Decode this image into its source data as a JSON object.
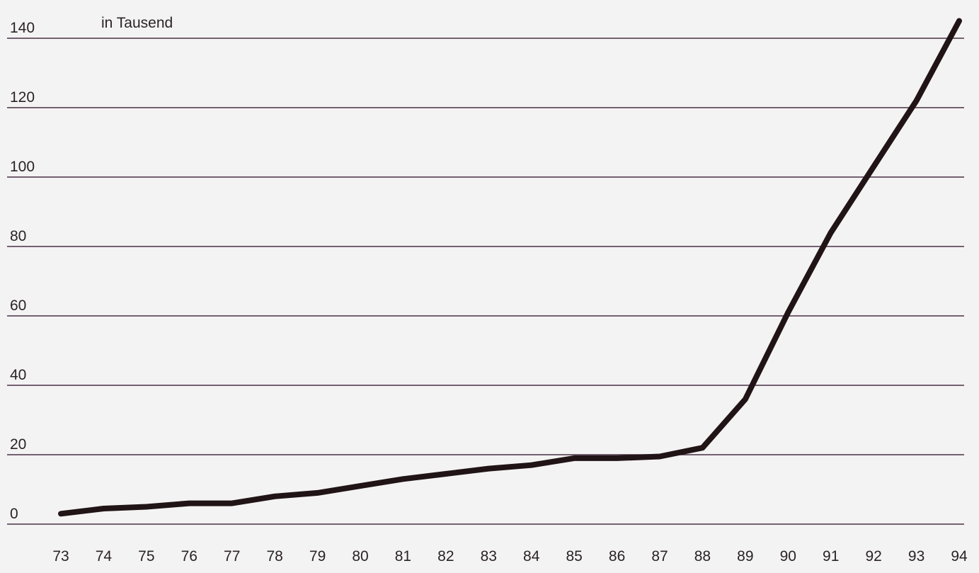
{
  "chart_data": {
    "type": "line",
    "unit_label": "in Tausend",
    "xlabel": "",
    "ylabel": "",
    "x": [
      "73",
      "74",
      "75",
      "76",
      "77",
      "78",
      "79",
      "80",
      "81",
      "82",
      "83",
      "84",
      "85",
      "86",
      "87",
      "88",
      "89",
      "90",
      "91",
      "92",
      "93",
      "94"
    ],
    "series": [
      {
        "values": [
          3,
          4.5,
          5,
          6,
          6,
          8,
          9,
          11,
          13,
          14.5,
          16,
          17,
          19,
          19,
          19.5,
          22,
          36,
          61,
          84,
          103,
          122,
          145
        ]
      }
    ],
    "yticks": [
      0,
      20,
      40,
      60,
      80,
      100,
      120,
      140
    ],
    "ylim": [
      0,
      145
    ],
    "grid": true,
    "legend": "none",
    "colors": {
      "line": "#201416",
      "grid": "#4a3145",
      "background": "#f4f3f3"
    }
  }
}
